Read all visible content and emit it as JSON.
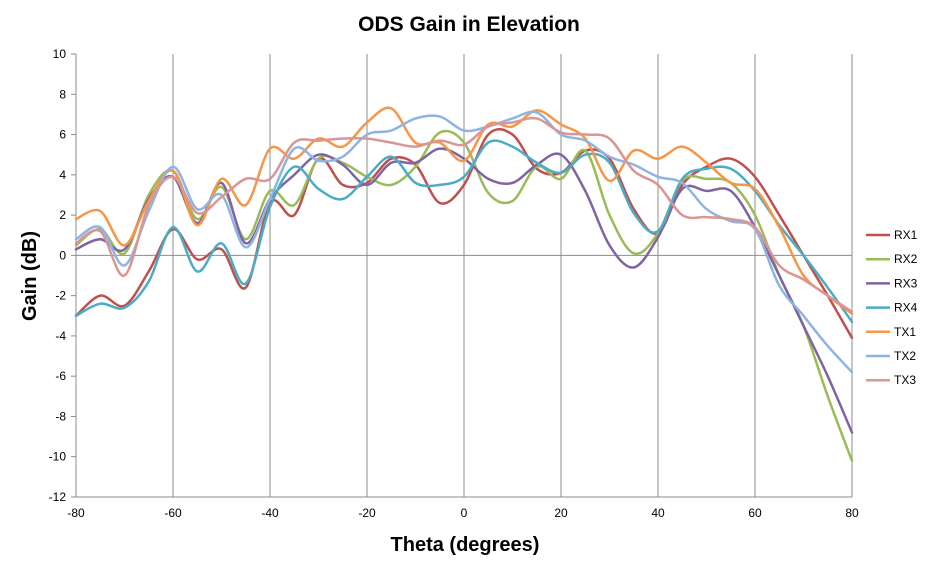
{
  "chart_data": {
    "type": "line",
    "title": "ODS Gain in Elevation",
    "xlabel": "Theta (degrees)",
    "ylabel": "Gain (dB)",
    "xlim": [
      -80,
      80
    ],
    "ylim": [
      -12,
      10
    ],
    "xticks": [
      -80,
      -60,
      -40,
      -20,
      0,
      20,
      40,
      60,
      80
    ],
    "yticks": [
      -12,
      -10,
      -8,
      -6,
      -4,
      -2,
      0,
      2,
      4,
      6,
      8,
      10
    ],
    "grid": "vertical",
    "legend_position": "right",
    "x": [
      -80,
      -75,
      -70,
      -65,
      -60,
      -55,
      -50,
      -45,
      -40,
      -35,
      -30,
      -25,
      -20,
      -15,
      -10,
      -5,
      0,
      5,
      10,
      15,
      20,
      25,
      30,
      35,
      40,
      45,
      50,
      55,
      60,
      65,
      70,
      75,
      80
    ],
    "series": [
      {
        "name": "RX1",
        "color": "#c0504d",
        "values": [
          -3.0,
          -2.0,
          -2.5,
          -0.8,
          1.3,
          -0.2,
          0.3,
          -1.6,
          2.6,
          2.0,
          4.8,
          3.5,
          3.6,
          4.8,
          4.5,
          2.6,
          3.5,
          6.0,
          6.0,
          4.3,
          4.1,
          5.2,
          4.8,
          2.3,
          1.1,
          3.5,
          4.4,
          4.8,
          3.9,
          2.0,
          0.0,
          -2.0,
          -4.1
        ]
      },
      {
        "name": "RX2",
        "color": "#9bbb59",
        "values": [
          0.5,
          1.3,
          0.1,
          3.0,
          4.2,
          1.8,
          3.4,
          0.8,
          3.2,
          2.5,
          4.8,
          4.6,
          3.9,
          3.5,
          4.4,
          6.1,
          5.6,
          3.1,
          2.7,
          4.4,
          3.8,
          5.2,
          2.0,
          0.1,
          1.1,
          3.7,
          3.8,
          3.6,
          2.0,
          -1.0,
          -3.5,
          -7.0,
          -10.2
        ]
      },
      {
        "name": "RX3",
        "color": "#8064a2",
        "values": [
          0.3,
          0.8,
          0.3,
          2.8,
          3.9,
          1.6,
          3.6,
          0.6,
          2.8,
          4.0,
          5.0,
          4.5,
          3.5,
          4.6,
          4.6,
          5.3,
          4.8,
          3.8,
          3.6,
          4.5,
          5.0,
          3.2,
          0.5,
          -0.6,
          0.9,
          3.3,
          3.2,
          3.2,
          1.4,
          -1.0,
          -3.5,
          -6.0,
          -8.8
        ]
      },
      {
        "name": "RX4",
        "color": "#4bacc6",
        "values": [
          -3.0,
          -2.4,
          -2.6,
          -1.3,
          1.4,
          -0.8,
          0.6,
          -1.4,
          2.4,
          4.4,
          3.3,
          2.8,
          3.9,
          4.9,
          3.6,
          3.5,
          3.9,
          5.6,
          5.4,
          4.6,
          4.1,
          5.0,
          4.6,
          2.1,
          1.2,
          3.8,
          4.3,
          4.3,
          3.2,
          1.5,
          0.0,
          -1.6,
          -3.3
        ]
      },
      {
        "name": "TX1",
        "color": "#f79646",
        "values": [
          1.8,
          2.2,
          0.5,
          2.7,
          4.2,
          1.5,
          3.8,
          2.5,
          5.3,
          4.8,
          5.8,
          5.4,
          6.6,
          7.3,
          5.6,
          5.6,
          4.7,
          6.5,
          6.4,
          7.2,
          6.5,
          5.8,
          3.7,
          5.2,
          4.8,
          5.4,
          4.6,
          3.6,
          3.3,
          1.4,
          -1.0,
          -2.0,
          -2.9
        ]
      },
      {
        "name": "TX2",
        "color": "#8eb4e3",
        "values": [
          0.8,
          1.4,
          -0.5,
          2.2,
          4.4,
          2.3,
          3.0,
          0.4,
          2.8,
          5.3,
          4.7,
          4.9,
          6.0,
          6.2,
          6.8,
          6.9,
          6.2,
          6.4,
          6.8,
          7.1,
          6.0,
          5.7,
          4.9,
          4.5,
          3.9,
          3.6,
          2.3,
          1.7,
          1.3,
          -1.5,
          -3.0,
          -4.5,
          -5.8
        ]
      },
      {
        "name": "TX3",
        "color": "#d99694",
        "values": [
          0.6,
          1.2,
          -1.0,
          2.5,
          3.9,
          2.1,
          2.9,
          3.8,
          3.8,
          5.6,
          5.7,
          5.8,
          5.8,
          5.6,
          5.4,
          5.7,
          5.5,
          6.4,
          6.6,
          6.8,
          6.1,
          6.0,
          5.8,
          4.2,
          3.5,
          2.0,
          1.9,
          1.8,
          1.4,
          -0.5,
          -1.2,
          -2.0,
          -2.8
        ]
      }
    ]
  }
}
